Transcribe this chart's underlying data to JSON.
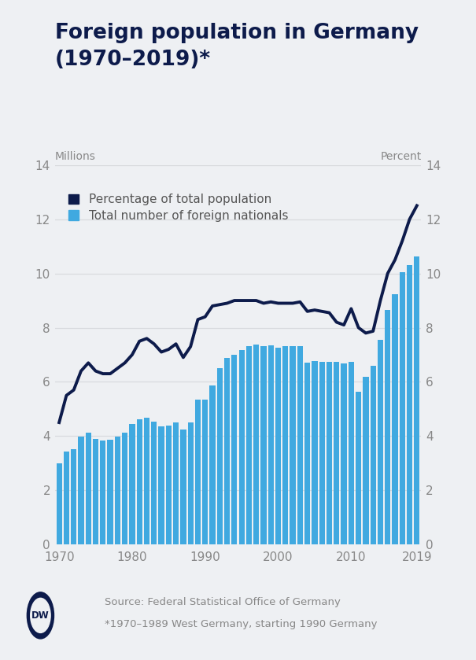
{
  "title_line1": "Foreign population in Germany",
  "title_line2": "(1970–2019)*",
  "ylabel_left": "Millions",
  "ylabel_right": "Percent",
  "background_color": "#eef0f3",
  "years": [
    1970,
    1971,
    1972,
    1973,
    1974,
    1975,
    1976,
    1977,
    1978,
    1979,
    1980,
    1981,
    1982,
    1983,
    1984,
    1985,
    1986,
    1987,
    1988,
    1989,
    1990,
    1991,
    1992,
    1993,
    1994,
    1995,
    1996,
    1997,
    1998,
    1999,
    2000,
    2001,
    2002,
    2003,
    2004,
    2005,
    2006,
    2007,
    2008,
    2009,
    2010,
    2011,
    2012,
    2013,
    2014,
    2015,
    2016,
    2017,
    2018,
    2019
  ],
  "bar_values": [
    2.98,
    3.44,
    3.53,
    3.97,
    4.13,
    3.9,
    3.84,
    3.86,
    3.98,
    4.14,
    4.45,
    4.63,
    4.67,
    4.53,
    4.36,
    4.38,
    4.51,
    4.24,
    4.49,
    5.34,
    5.34,
    5.88,
    6.5,
    6.88,
    6.99,
    7.17,
    7.31,
    7.37,
    7.32,
    7.34,
    7.27,
    7.32,
    7.32,
    7.33,
    6.71,
    6.76,
    6.75,
    6.75,
    6.73,
    6.69,
    6.75,
    5.63,
    6.2,
    6.58,
    7.54,
    8.65,
    9.22,
    10.04,
    10.31,
    10.62
  ],
  "line_values": [
    4.5,
    5.5,
    5.7,
    6.4,
    6.7,
    6.4,
    6.3,
    6.3,
    6.5,
    6.7,
    7.0,
    7.5,
    7.6,
    7.4,
    7.1,
    7.2,
    7.4,
    6.9,
    7.3,
    8.3,
    8.4,
    8.8,
    8.85,
    8.9,
    9.0,
    9.0,
    9.0,
    9.0,
    8.9,
    8.95,
    8.9,
    8.9,
    8.9,
    8.95,
    8.6,
    8.65,
    8.6,
    8.55,
    8.2,
    8.1,
    8.7,
    8.0,
    7.8,
    7.87,
    9.0,
    10.0,
    10.5,
    11.2,
    12.0,
    12.5
  ],
  "bar_color": "#40a9e0",
  "line_color": "#0d1b4b",
  "xlim": [
    1969.4,
    2019.6
  ],
  "ylim": [
    0,
    14
  ],
  "xticks": [
    1970,
    1980,
    1990,
    2000,
    2010,
    2019
  ],
  "yticks": [
    0,
    2,
    4,
    6,
    8,
    10,
    12,
    14
  ],
  "legend_line_label": "Percentage of total population",
  "legend_bar_label": "Total number of foreign nationals",
  "source_line1": "Source: Federal Statistical Office of Germany",
  "source_line2": "*1970–1989 West Germany, starting 1990 Germany",
  "dw_logo_color": "#0d1b4b",
  "title_color": "#0d1b4b",
  "tick_color": "#888888",
  "grid_color": "#d8dade"
}
